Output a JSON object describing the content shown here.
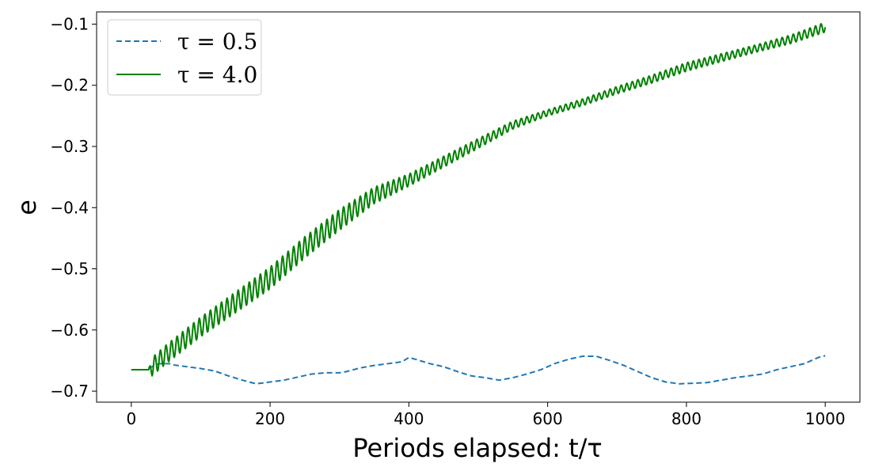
{
  "chart_data": {
    "type": "line",
    "title": "",
    "xlabel": "Periods elapsed: t/τ",
    "ylabel": "e",
    "xlim": [
      -50,
      1050
    ],
    "ylim": [
      -0.718,
      -0.08
    ],
    "xticks": [
      0,
      200,
      400,
      600,
      800,
      1000
    ],
    "xtick_labels": [
      "0",
      "200",
      "400",
      "600",
      "800",
      "1000"
    ],
    "yticks": [
      -0.7,
      -0.6,
      -0.5,
      -0.4,
      -0.3,
      -0.2,
      -0.1
    ],
    "ytick_labels": [
      "−0.7",
      "−0.6",
      "−0.5",
      "−0.4",
      "−0.3",
      "−0.2",
      "−0.1"
    ],
    "grid": false,
    "legend_position": "top-left",
    "series": [
      {
        "name": "τ = 0.5",
        "color": "#1f77b4",
        "style": "dashed",
        "x": [
          0,
          20,
          30,
          40,
          55,
          60,
          80,
          100,
          120,
          140,
          160,
          180,
          200,
          220,
          240,
          260,
          280,
          300,
          310,
          330,
          350,
          370,
          390,
          400,
          410,
          430,
          450,
          470,
          490,
          510,
          530,
          550,
          570,
          590,
          610,
          630,
          650,
          670,
          690,
          710,
          730,
          750,
          770,
          790,
          810,
          830,
          850,
          870,
          890,
          910,
          930,
          950,
          970,
          990,
          1000
        ],
        "y": [
          -0.665,
          -0.665,
          -0.66,
          -0.655,
          -0.655,
          -0.657,
          -0.66,
          -0.663,
          -0.667,
          -0.675,
          -0.682,
          -0.688,
          -0.685,
          -0.682,
          -0.677,
          -0.672,
          -0.67,
          -0.67,
          -0.668,
          -0.662,
          -0.658,
          -0.655,
          -0.652,
          -0.645,
          -0.648,
          -0.655,
          -0.66,
          -0.668,
          -0.675,
          -0.678,
          -0.682,
          -0.678,
          -0.672,
          -0.665,
          -0.655,
          -0.648,
          -0.643,
          -0.643,
          -0.65,
          -0.658,
          -0.668,
          -0.678,
          -0.685,
          -0.688,
          -0.687,
          -0.686,
          -0.682,
          -0.678,
          -0.675,
          -0.672,
          -0.665,
          -0.66,
          -0.655,
          -0.645,
          -0.642
        ]
      },
      {
        "name": "τ = 4.0",
        "color": "#008000",
        "style": "solid",
        "oscillation_period": 8,
        "x": [
          0,
          25,
          30,
          50,
          100,
          150,
          200,
          250,
          300,
          350,
          400,
          450,
          500,
          550,
          600,
          650,
          700,
          750,
          800,
          850,
          900,
          950,
          1000
        ],
        "y": [
          -0.665,
          -0.665,
          -0.66,
          -0.64,
          -0.595,
          -0.555,
          -0.515,
          -0.465,
          -0.42,
          -0.38,
          -0.355,
          -0.325,
          -0.295,
          -0.265,
          -0.245,
          -0.228,
          -0.208,
          -0.19,
          -0.17,
          -0.155,
          -0.14,
          -0.125,
          -0.105
        ],
        "amplitude_x": [
          0,
          25,
          30,
          100,
          200,
          300,
          400,
          500,
          600,
          700,
          800,
          900,
          1000
        ],
        "amplitude": [
          0,
          0,
          0.015,
          0.016,
          0.018,
          0.017,
          0.01,
          0.008,
          0.005,
          0.006,
          0.007,
          0.006,
          0.008
        ]
      }
    ]
  }
}
